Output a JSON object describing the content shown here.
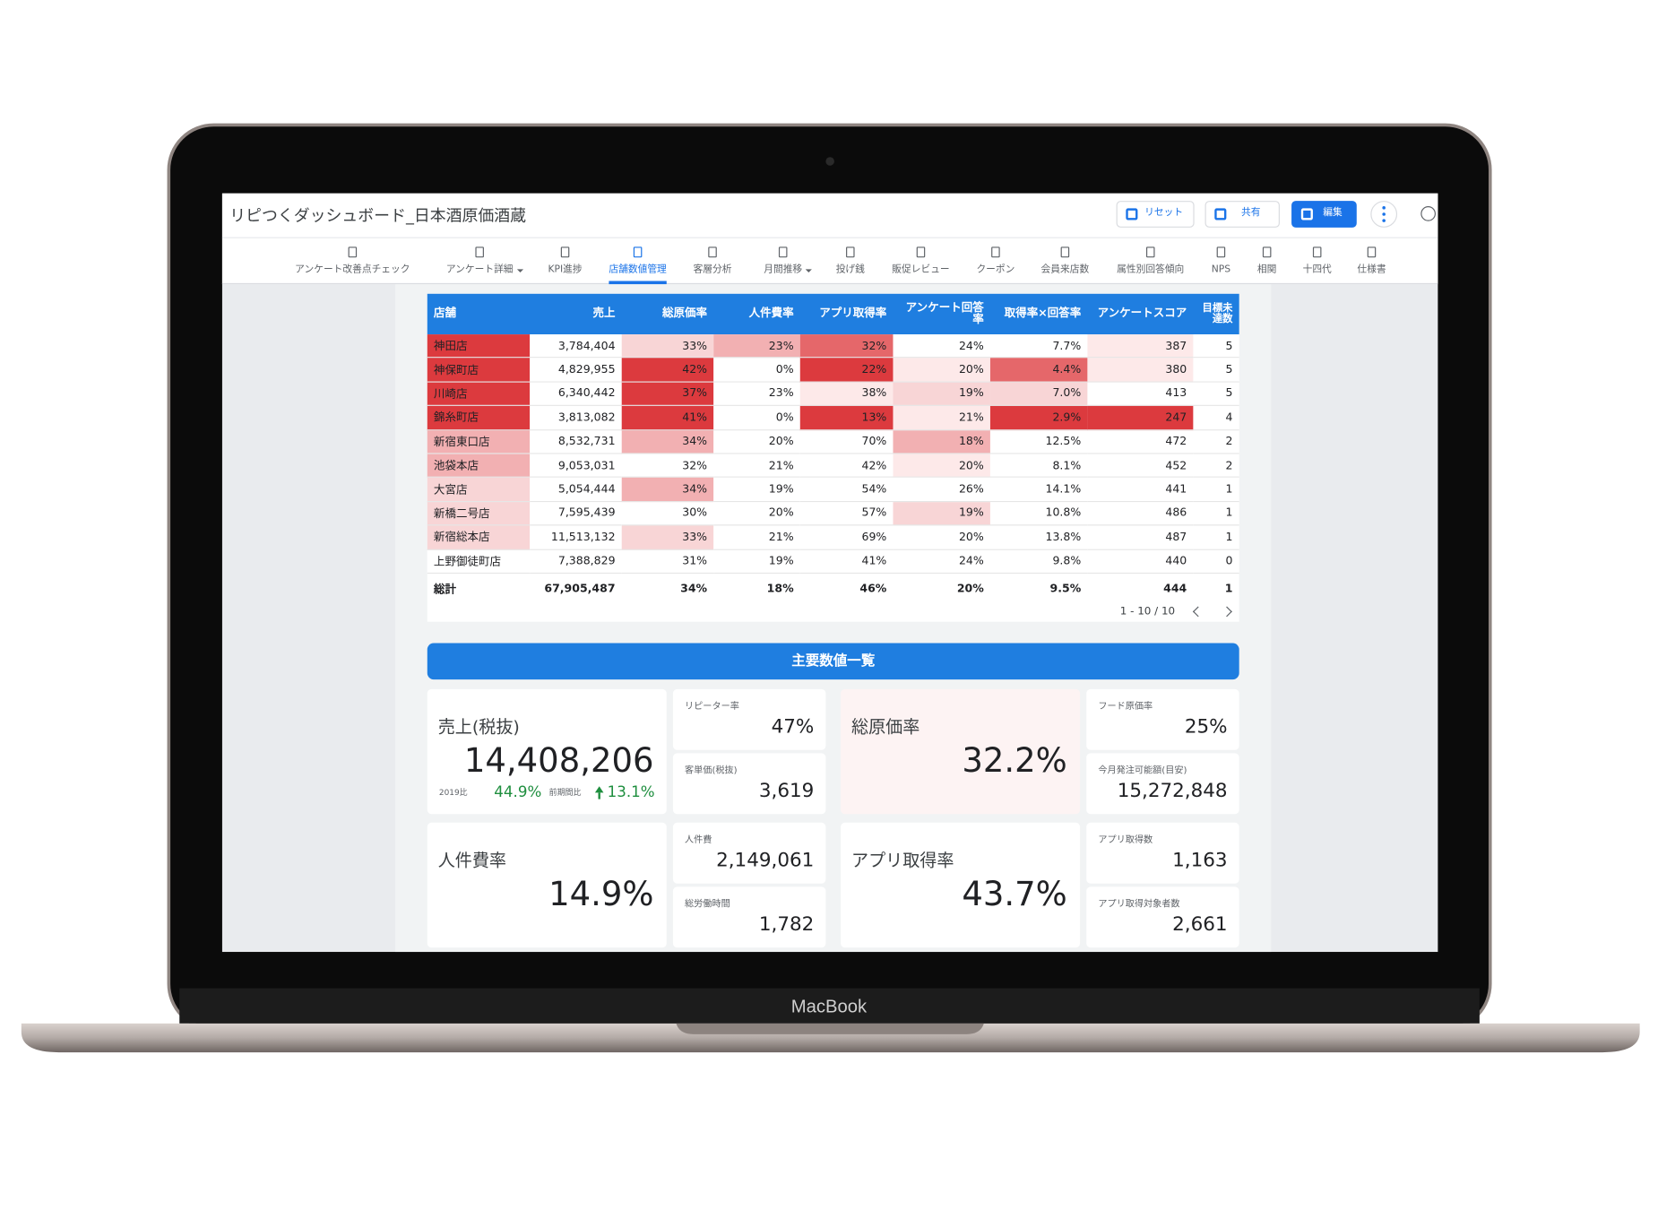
{
  "header": {
    "title": "リピつくダッシュボード_日本酒原価酒蔵",
    "buttons": [
      "リセット",
      "共有",
      "編集"
    ]
  },
  "nav": {
    "active_tab": 3,
    "tabs": [
      {
        "label": "アンケート改善点チェック",
        "dropdown": false
      },
      {
        "label": "アンケート詳細",
        "dropdown": true
      },
      {
        "label": "KPI進捗",
        "dropdown": false
      },
      {
        "label": "店舗数値管理",
        "dropdown": false
      },
      {
        "label": "客層分析",
        "dropdown": false
      },
      {
        "label": "月間推移",
        "dropdown": true
      },
      {
        "label": "投げ銭",
        "dropdown": false
      },
      {
        "label": "販促レビュー",
        "dropdown": false
      },
      {
        "label": "クーポン",
        "dropdown": false
      },
      {
        "label": "会員来店数",
        "dropdown": false
      },
      {
        "label": "属性別回答傾向",
        "dropdown": false
      },
      {
        "label": "NPS",
        "dropdown": false
      },
      {
        "label": "相関",
        "dropdown": false
      },
      {
        "label": "十四代",
        "dropdown": false
      },
      {
        "label": "仕様書",
        "dropdown": false
      }
    ]
  },
  "table": {
    "columns": [
      "店舗",
      "売上",
      "総原価率",
      "人件費率",
      "アプリ取得率",
      "アンケート回答率",
      "取得率×回答率",
      "アンケートスコア",
      "目標未達数"
    ],
    "rows": [
      [
        "神田店",
        "3,784,404",
        "33%",
        "23%",
        "32%",
        "24%",
        "7.7%",
        "387",
        "5"
      ],
      [
        "神保町店",
        "4,829,955",
        "42%",
        "0%",
        "22%",
        "20%",
        "4.4%",
        "380",
        "5"
      ],
      [
        "川崎店",
        "6,340,442",
        "37%",
        "23%",
        "38%",
        "19%",
        "7.0%",
        "413",
        "5"
      ],
      [
        "錦糸町店",
        "3,813,082",
        "41%",
        "0%",
        "13%",
        "21%",
        "2.9%",
        "247",
        "4"
      ],
      [
        "新宿東口店",
        "8,532,731",
        "34%",
        "20%",
        "70%",
        "18%",
        "12.5%",
        "472",
        "2"
      ],
      [
        "池袋本店",
        "9,053,031",
        "32%",
        "21%",
        "42%",
        "20%",
        "8.1%",
        "452",
        "2"
      ],
      [
        "大宮店",
        "5,054,444",
        "34%",
        "19%",
        "54%",
        "26%",
        "14.1%",
        "441",
        "1"
      ],
      [
        "新橋二号店",
        "7,595,439",
        "30%",
        "20%",
        "57%",
        "19%",
        "10.8%",
        "486",
        "1"
      ],
      [
        "新宿総本店",
        "11,513,132",
        "33%",
        "21%",
        "69%",
        "20%",
        "13.8%",
        "487",
        "1"
      ],
      [
        "上野御徒町店",
        "7,388,829",
        "31%",
        "19%",
        "41%",
        "24%",
        "9.8%",
        "440",
        "0"
      ]
    ],
    "cell_colors": [
      [
        "#dc3a3e",
        "#ffffff",
        "#f8d5d6",
        "#f2b0b2",
        "#e5676a",
        "#ffffff",
        "#ffffff",
        "#fde9e9",
        "#ffffff"
      ],
      [
        "#dc3a3e",
        "#ffffff",
        "#dc3a3e",
        "#ffffff",
        "#dc3a3e",
        "#fde9e9",
        "#e5676a",
        "#fde9e9",
        "#ffffff"
      ],
      [
        "#dc3a3e",
        "#ffffff",
        "#dc3a3e",
        "#ffffff",
        "#fde9e9",
        "#f8d5d6",
        "#f8d5d6",
        "#ffffff",
        "#ffffff"
      ],
      [
        "#dc3a3e",
        "#ffffff",
        "#dc3a3e",
        "#ffffff",
        "#dc3a3e",
        "#fde9e9",
        "#dc3a3e",
        "#dc3a3e",
        "#ffffff"
      ],
      [
        "#f2b0b2",
        "#ffffff",
        "#f2b0b2",
        "#ffffff",
        "#ffffff",
        "#f2b0b2",
        "#ffffff",
        "#ffffff",
        "#ffffff"
      ],
      [
        "#f2b0b2",
        "#ffffff",
        "#ffffff",
        "#ffffff",
        "#ffffff",
        "#fde9e9",
        "#ffffff",
        "#ffffff",
        "#ffffff"
      ],
      [
        "#f8d5d6",
        "#ffffff",
        "#f2b0b2",
        "#ffffff",
        "#ffffff",
        "#ffffff",
        "#ffffff",
        "#ffffff",
        "#ffffff"
      ],
      [
        "#f8d5d6",
        "#ffffff",
        "#ffffff",
        "#ffffff",
        "#ffffff",
        "#f8d5d6",
        "#ffffff",
        "#ffffff",
        "#ffffff"
      ],
      [
        "#f8d5d6",
        "#ffffff",
        "#f8d5d6",
        "#ffffff",
        "#ffffff",
        "#ffffff",
        "#ffffff",
        "#ffffff",
        "#ffffff"
      ],
      [
        "#ffffff",
        "#ffffff",
        "#ffffff",
        "#ffffff",
        "#ffffff",
        "#ffffff",
        "#ffffff",
        "#ffffff",
        "#ffffff"
      ]
    ],
    "total": [
      "総計",
      "67,905,487",
      "34%",
      "18%",
      "46%",
      "20%",
      "9.5%",
      "444",
      "1"
    ],
    "pagination": "1 - 10 / 10"
  },
  "kpis": {
    "title": "主要数値一覧",
    "main": [
      {
        "label": "売上(税抜)",
        "value": "14,408,206",
        "comparisons": [
          {
            "label": "2019比",
            "value": "44.9%"
          },
          {
            "label": "前期間比",
            "value": "13.1%"
          }
        ]
      },
      {
        "label": "総原価率",
        "value": "32.2%",
        "background": "#fdf3f3"
      },
      {
        "label": "人件費率",
        "value": "14.9%"
      },
      {
        "label": "アプリ取得率",
        "value": "43.7%"
      }
    ],
    "sub": [
      {
        "label": "リピーター率",
        "value": "47%"
      },
      {
        "label": "客単価(税抜)",
        "value": "3,619"
      },
      {
        "label": "フード原価率",
        "value": "25%"
      },
      {
        "label": "今月発注可能額(目安)",
        "value": "15,272,848"
      },
      {
        "label": "人件費",
        "value": "2,149,061"
      },
      {
        "label": "総労働時間",
        "value": "1,782"
      },
      {
        "label": "アプリ取得数",
        "value": "1,163"
      },
      {
        "label": "アプリ取得対象者数",
        "value": "2,661"
      }
    ]
  },
  "device": {
    "label": "MacBook"
  }
}
